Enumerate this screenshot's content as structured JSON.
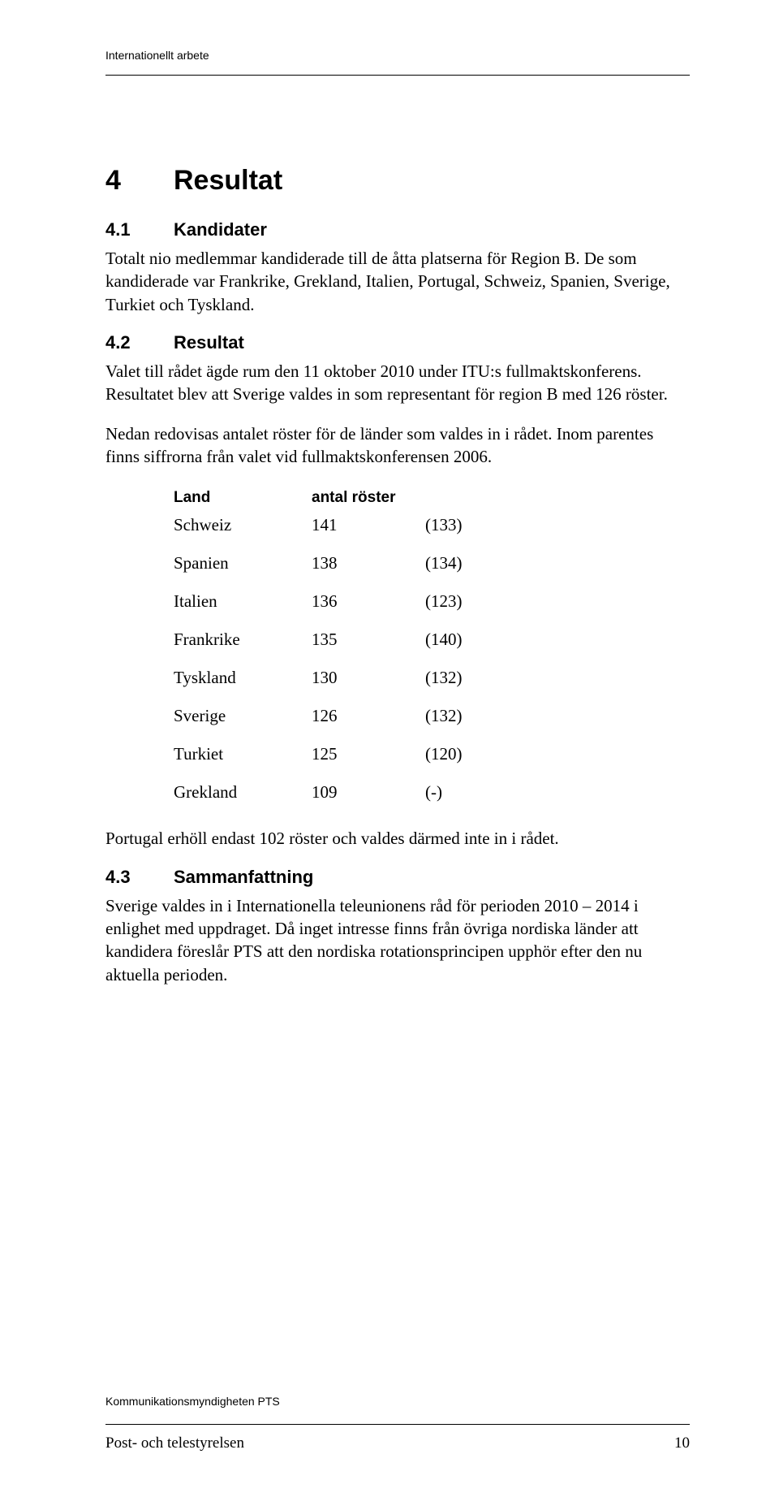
{
  "header": {
    "label": "Internationellt arbete"
  },
  "chapter": {
    "num": "4",
    "title": "Resultat"
  },
  "sections": {
    "s1": {
      "num": "4.1",
      "title": "Kandidater"
    },
    "s2": {
      "num": "4.2",
      "title": "Resultat"
    },
    "s3": {
      "num": "4.3",
      "title": "Sammanfattning"
    }
  },
  "paragraphs": {
    "p1": "Totalt nio medlemmar kandiderade till de åtta platserna för Region B. De som kandiderade var Frankrike, Grekland, Italien, Portugal, Schweiz, Spanien, Sverige, Turkiet och Tyskland.",
    "p2": "Valet till rådet ägde rum den 11 oktober 2010 under ITU:s fullmaktskonferens. Resultatet blev att Sverige valdes in som representant för region B med 126 röster.",
    "p3": "Nedan redovisas antalet röster för de länder som valdes in i rådet. Inom parentes finns siffrorna från valet vid fullmaktskonferensen 2006.",
    "p4": "Portugal erhöll endast 102 röster och valdes därmed inte in i rådet.",
    "p5": "Sverige valdes in i Internationella teleunionens råd för perioden 2010 – 2014 i enlighet med uppdraget. Då inget intresse finns från övriga nordiska länder att kandidera föreslår PTS att den nordiska rotationsprincipen upphör efter den nu aktuella perioden."
  },
  "table": {
    "header": {
      "land": "Land",
      "antal": "antal röster"
    },
    "rows": [
      {
        "land": "Schweiz",
        "votes": "141",
        "prev": "(133)"
      },
      {
        "land": "Spanien",
        "votes": "138",
        "prev": "(134)"
      },
      {
        "land": "Italien",
        "votes": "136",
        "prev": "(123)"
      },
      {
        "land": "Frankrike",
        "votes": "135",
        "prev": "(140)"
      },
      {
        "land": "Tyskland",
        "votes": "130",
        "prev": "(132)"
      },
      {
        "land": "Sverige",
        "votes": "126",
        "prev": "(132)"
      },
      {
        "land": "Turkiet",
        "votes": "125",
        "prev": "(120)"
      },
      {
        "land": "Grekland",
        "votes": "109",
        "prev": "(-)"
      }
    ]
  },
  "footer": {
    "org": "Kommunikationsmyndigheten PTS",
    "left": "Post- och telestyrelsen",
    "pagenum": "10"
  }
}
